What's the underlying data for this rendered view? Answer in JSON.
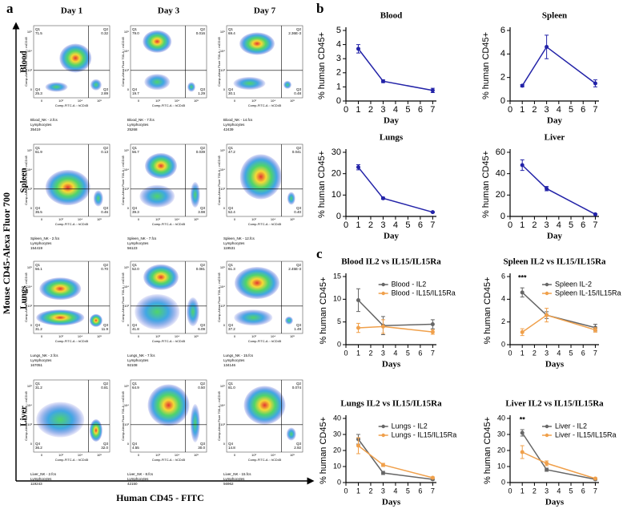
{
  "flow": {
    "panel_label": "a",
    "columns": [
      "Day 1",
      "Day 3",
      "Day 7"
    ],
    "rows": [
      "Blood",
      "Spleen",
      "Lungs",
      "Liver"
    ],
    "y_label": "Mouse CD45-Alexa Fluor 700",
    "x_label": "Human CD45 - FITC",
    "plot_y_axis": "Comp-Alexa Fluor 700-A :: mCD45",
    "plot_x_axis": "Comp-FITC-A :: hCD45",
    "axis_ticks": [
      "0",
      "10³",
      "10⁴",
      "10⁵"
    ],
    "quadrant_names": [
      "Q1",
      "Q2",
      "Q4",
      "Q3"
    ],
    "plots": [
      [
        {
          "quadrants": [
            "71.5",
            "0.32",
            "25.3",
            "2.89"
          ],
          "caption": [
            "Blood_NK - 2.fcs",
            "Lymphocytes",
            "35419"
          ]
        },
        {
          "quadrants": [
            "79.0",
            "0.016",
            "19.7",
            "1.29"
          ],
          "caption": [
            "Blood_NK - 7.fcs",
            "Lymphocytes",
            "25268"
          ]
        },
        {
          "quadrants": [
            "69.4",
            "2.36E-3",
            "30.1",
            "0.48"
          ],
          "caption": [
            "Blood_NK - 14.fcs",
            "Lymphocytes",
            "42439"
          ]
        }
      ],
      [
        {
          "quadrants": [
            "61.9",
            "0.13",
            "35.5",
            "0.46"
          ],
          "caption": [
            "Spleen_NK - 2.fcs",
            "Lymphocytes",
            "154419"
          ]
        },
        {
          "quadrants": [
            "56.7",
            "0.039",
            "39.3",
            "3.98"
          ],
          "caption": [
            "Spleen_NK - 7.fcs",
            "Lymphocytes",
            "56123"
          ]
        },
        {
          "quadrants": [
            "47.2",
            "0.041",
            "52.4",
            "0.40"
          ],
          "caption": [
            "Spleen_NK - 12.fcs",
            "Lymphocytes",
            "119531"
          ]
        }
      ],
      [
        {
          "quadrants": [
            "56.1",
            "0.70",
            "31.2",
            "11.9"
          ],
          "caption": [
            "Lungs_NK - 2.fcs",
            "Lymphocytes",
            "167051"
          ]
        },
        {
          "quadrants": [
            "52.0",
            "0.081",
            "41.8",
            "6.09"
          ],
          "caption": [
            "Lungs_NK - 7.fcs",
            "Lymphocytes",
            "92108"
          ]
        },
        {
          "quadrants": [
            "61.3",
            "2.45E-3",
            "37.2",
            "1.49"
          ],
          "caption": [
            "Lungs_NK - 15.fcs",
            "Lymphocytes",
            "134146"
          ]
        }
      ],
      [
        {
          "quadrants": [
            "31.2",
            "0.81",
            "36.2",
            "32.0"
          ],
          "caption": [
            "Liver_NK - 2.fcs",
            "Lymphocytes",
            "119243"
          ]
        },
        {
          "quadrants": [
            "64.9",
            "0.50",
            "4.55",
            "30.0"
          ],
          "caption": [
            "Liver_NK - 8.fcs",
            "Lymphocytes",
            "42150"
          ]
        },
        {
          "quadrants": [
            "81.0",
            "0.074",
            "14.8",
            "2.92"
          ],
          "caption": [
            "Liver_NK - 15.fcs",
            "Lymphocytes",
            "56962"
          ]
        }
      ]
    ]
  },
  "panel_b": "b",
  "panel_c": "c",
  "chart_data": [
    {
      "type": "line",
      "title": "Blood",
      "x_label": "Day",
      "y_label": "% human CD45+",
      "x": [
        1,
        3,
        7
      ],
      "xlim": [
        0,
        7.3
      ],
      "xticks": [
        0,
        1,
        2,
        3,
        4,
        5,
        6,
        7
      ],
      "ylim": [
        0,
        5
      ],
      "yticks": [
        0,
        1,
        2,
        3,
        4,
        5
      ],
      "series": [
        {
          "color": "#2323a8",
          "values": [
            3.7,
            1.4,
            0.75
          ],
          "errors": [
            0.3,
            0.1,
            0.15
          ]
        }
      ]
    },
    {
      "type": "line",
      "title": "Spleen",
      "x_label": "Day",
      "y_label": "% human CD45+",
      "x": [
        1,
        3,
        7
      ],
      "xlim": [
        0,
        7.3
      ],
      "xticks": [
        0,
        1,
        2,
        3,
        4,
        5,
        6,
        7
      ],
      "ylim": [
        0,
        6
      ],
      "yticks": [
        0,
        2,
        4,
        6
      ],
      "series": [
        {
          "color": "#2323a8",
          "values": [
            1.3,
            4.6,
            1.5
          ],
          "errors": [
            0.1,
            1.0,
            0.3
          ]
        }
      ]
    },
    {
      "type": "line",
      "title": "Lungs",
      "x_label": "Day",
      "y_label": "% human CD45+",
      "x": [
        1,
        3,
        7
      ],
      "xlim": [
        0,
        7.3
      ],
      "xticks": [
        0,
        1,
        2,
        3,
        4,
        5,
        6,
        7
      ],
      "ylim": [
        0,
        30
      ],
      "yticks": [
        0,
        10,
        20,
        30
      ],
      "series": [
        {
          "color": "#2323a8",
          "values": [
            23,
            8.5,
            2
          ],
          "errors": [
            1.2,
            0.5,
            0.2
          ]
        }
      ]
    },
    {
      "type": "line",
      "title": "Liver",
      "x_label": "Day",
      "y_label": "% human CD45+",
      "x": [
        1,
        3,
        7
      ],
      "xlim": [
        0,
        7.3
      ],
      "xticks": [
        0,
        1,
        2,
        3,
        4,
        5,
        6,
        7
      ],
      "ylim": [
        0,
        60
      ],
      "yticks": [
        0,
        20,
        40,
        60
      ],
      "series": [
        {
          "color": "#2323a8",
          "values": [
            48,
            26,
            2
          ],
          "errors": [
            5,
            2,
            0.5
          ]
        }
      ]
    },
    {
      "type": "line",
      "title": "Blood IL2 vs IL15/IL15Ra",
      "x_label": "Days",
      "y_label": "% human CD45+",
      "x": [
        1,
        3,
        7
      ],
      "xlim": [
        0,
        7.3
      ],
      "xticks": [
        0,
        1,
        2,
        3,
        4,
        5,
        6,
        7
      ],
      "ylim": [
        0,
        15
      ],
      "yticks": [
        0,
        5,
        10,
        15
      ],
      "legend": "upper right",
      "series": [
        {
          "name": "Blood - IL2",
          "color": "#666666",
          "values": [
            9.8,
            4.2,
            4.5
          ],
          "errors": [
            2.5,
            2,
            1
          ]
        },
        {
          "name": "Blood - IL15/IL15Ra",
          "color": "#f0a04b",
          "values": [
            3.7,
            4.0,
            2.8
          ],
          "errors": [
            1,
            1.5,
            0.5
          ]
        }
      ]
    },
    {
      "type": "line",
      "title": "Spleen IL2 vs IL15/IL15Ra",
      "x_label": "Days",
      "y_label": "% human CD45+",
      "x": [
        1,
        3,
        7
      ],
      "xlim": [
        0,
        7.3
      ],
      "xticks": [
        0,
        1,
        2,
        3,
        4,
        5,
        6,
        7
      ],
      "ylim": [
        0,
        6
      ],
      "yticks": [
        0,
        2,
        4,
        6
      ],
      "legend": "upper right",
      "annotations": [
        {
          "text": "***",
          "x": 1
        }
      ],
      "series": [
        {
          "name": "Spleen IL-2",
          "color": "#666666",
          "values": [
            4.6,
            2.6,
            1.5
          ],
          "errors": [
            0.4,
            0.3,
            0.3
          ]
        },
        {
          "name": "Spleen IL-15/IL15Ra",
          "color": "#f0a04b",
          "values": [
            1.1,
            2.6,
            1.3
          ],
          "errors": [
            0.3,
            0.6,
            0.2
          ]
        }
      ]
    },
    {
      "type": "line",
      "title": "Lungs  IL2 vs IL15/IL15Ra",
      "x_label": "Days",
      "y_label": "% human CD45+",
      "x": [
        1,
        3,
        7
      ],
      "xlim": [
        0,
        7.3
      ],
      "xticks": [
        0,
        1,
        2,
        3,
        4,
        5,
        6,
        7
      ],
      "ylim": [
        0,
        40
      ],
      "yticks": [
        0,
        10,
        20,
        30,
        40
      ],
      "legend": "upper right",
      "series": [
        {
          "name": "Lungs - IL2",
          "color": "#666666",
          "values": [
            27,
            6,
            2
          ],
          "errors": [
            3,
            1,
            0.5
          ]
        },
        {
          "name": "Lungs - IL15/IL15Ra",
          "color": "#f0a04b",
          "values": [
            23,
            11,
            3
          ],
          "errors": [
            5,
            1,
            0.5
          ]
        }
      ]
    },
    {
      "type": "line",
      "title": "Liver IL2 vs IL15/IL15Ra",
      "x_label": "Days",
      "y_label": "% human CD45+",
      "x": [
        1,
        3,
        7
      ],
      "xlim": [
        0,
        7.3
      ],
      "xticks": [
        0,
        1,
        2,
        3,
        4,
        5,
        6,
        7
      ],
      "ylim": [
        0,
        40
      ],
      "yticks": [
        0,
        10,
        20,
        30,
        40
      ],
      "legend": "upper right",
      "annotations": [
        {
          "text": "**",
          "x": 1
        }
      ],
      "series": [
        {
          "name": "Liver - IL2",
          "color": "#666666",
          "values": [
            31,
            8,
            2
          ],
          "errors": [
            2,
            1,
            0.5
          ]
        },
        {
          "name": "Liver - IL15/IL15Ra",
          "color": "#f0a04b",
          "values": [
            19,
            12,
            2.5
          ],
          "errors": [
            4,
            1.5,
            0.5
          ]
        }
      ]
    }
  ]
}
